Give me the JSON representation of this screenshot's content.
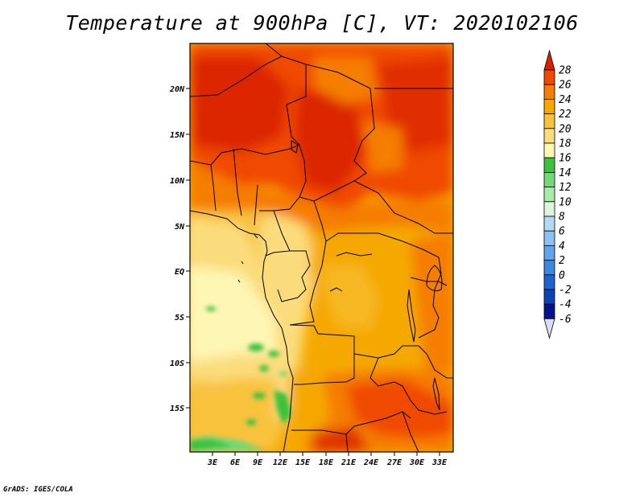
{
  "title": "Temperature at 900hPa [C], VT: 2020102106",
  "credit": "GrADS: IGES/COLA",
  "map": {
    "region": "Central and West Africa",
    "lat_ticks": [
      "20N",
      "15N",
      "10N",
      "5N",
      "EQ",
      "5S",
      "10S",
      "15S"
    ],
    "lon_ticks": [
      "3E",
      "6E",
      "9E",
      "12E",
      "15E",
      "18E",
      "21E",
      "24E",
      "27E",
      "30E",
      "33E"
    ]
  },
  "colorbar": {
    "labels": [
      "28",
      "26",
      "24",
      "22",
      "20",
      "18",
      "16",
      "14",
      "12",
      "10",
      "8",
      "6",
      "4",
      "2",
      "0",
      "-2",
      "-4",
      "-6"
    ],
    "colors": [
      "#d82100",
      "#f04a00",
      "#f57d00",
      "#f5a800",
      "#f8c23c",
      "#fbdc7c",
      "#fef6b4",
      "#3ec13e",
      "#74d874",
      "#a6eca6",
      "#daf7da",
      "#b4d9f4",
      "#8bc1f3",
      "#5fa5ec",
      "#3a88e0",
      "#1c64d0",
      "#0b44b4",
      "#04148a",
      "#dcdcf4"
    ]
  }
}
